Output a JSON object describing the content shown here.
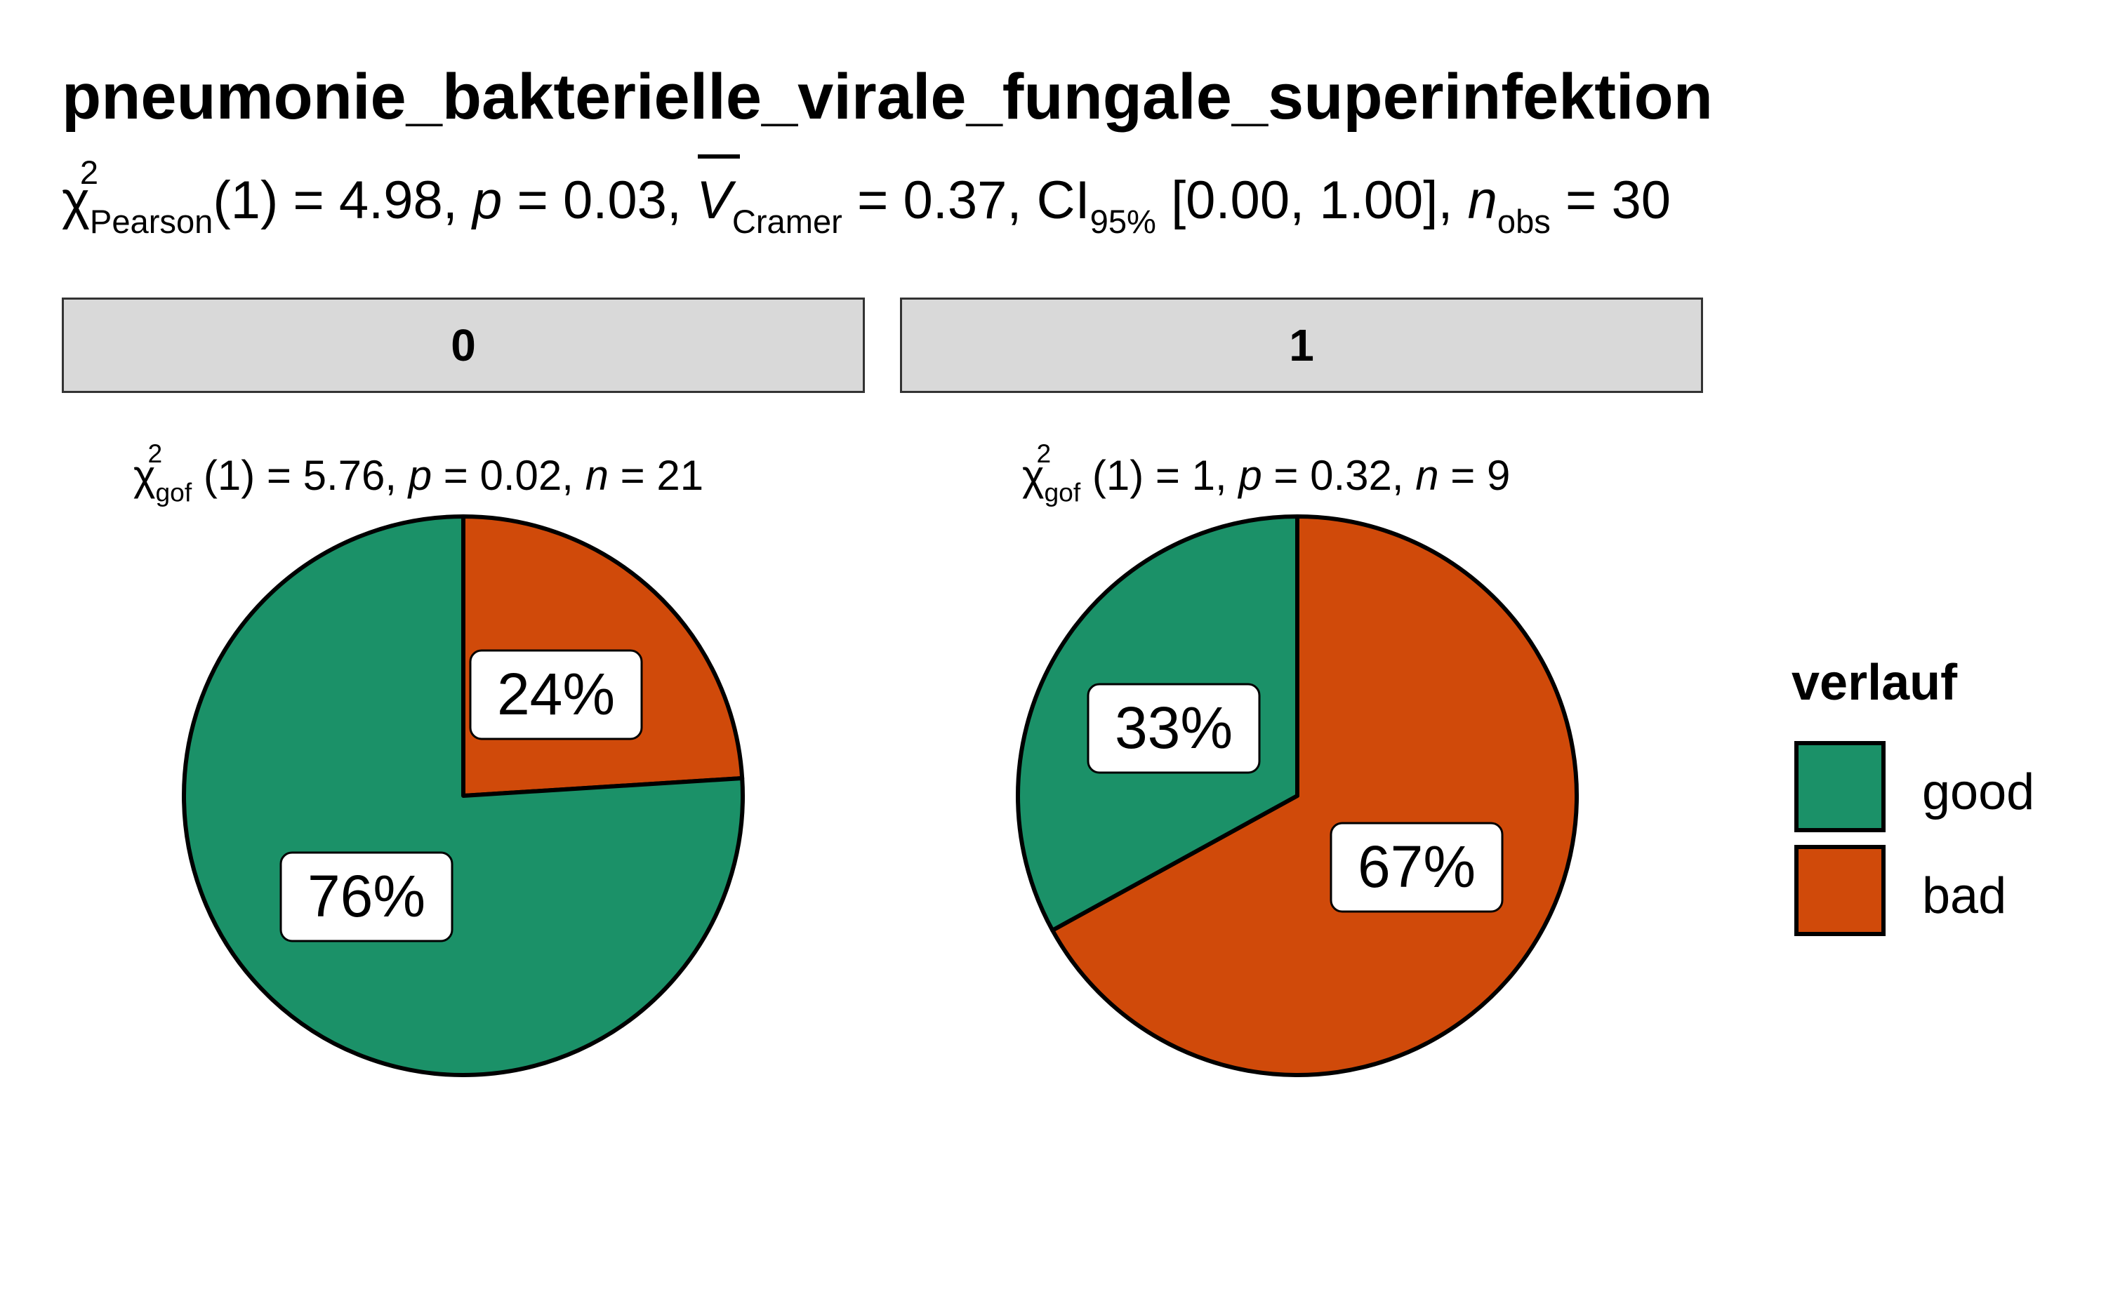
{
  "title": "pneumonie_bakterielle_virale_fungale_superinfektion",
  "subtitle": {
    "chi_symbol": "χ",
    "chi_sup": "2",
    "chi_sub": "Pearson",
    "df": "(1)",
    "stat": "= 4.98,",
    "p_label": "p",
    "p_value": "= 0.03,",
    "v_label": "V",
    "v_sub": "Cramer",
    "v_value": "= 0.37, CI",
    "ci_sub": "95%",
    "ci_value": "[0.00, 1.00],",
    "n_label": "n",
    "n_sub": "obs",
    "n_value": "= 30"
  },
  "colors": {
    "good": "#1b9168",
    "bad": "#d04a0a",
    "strip": "#d9d9d9"
  },
  "legend": {
    "title": "verlauf",
    "items": [
      {
        "label": "good",
        "color": "#1b9168"
      },
      {
        "label": "bad",
        "color": "#d04a0a"
      }
    ]
  },
  "chart_data": [
    {
      "type": "pie",
      "facet": "0",
      "stats": {
        "chi_sub": "gof",
        "df": "(1)",
        "stat": "= 5.76,",
        "p": "= 0.02,",
        "n": "= 21"
      },
      "slices": [
        {
          "name": "good",
          "value": 76,
          "label": "76%"
        },
        {
          "name": "bad",
          "value": 24,
          "label": "24%"
        }
      ]
    },
    {
      "type": "pie",
      "facet": "1",
      "stats": {
        "chi_sub": "gof",
        "df": "(1)",
        "stat": "= 1,",
        "p": "= 0.32,",
        "n": "= 9"
      },
      "slices": [
        {
          "name": "good",
          "value": 33,
          "label": "33%"
        },
        {
          "name": "bad",
          "value": 67,
          "label": "67%"
        }
      ]
    }
  ]
}
